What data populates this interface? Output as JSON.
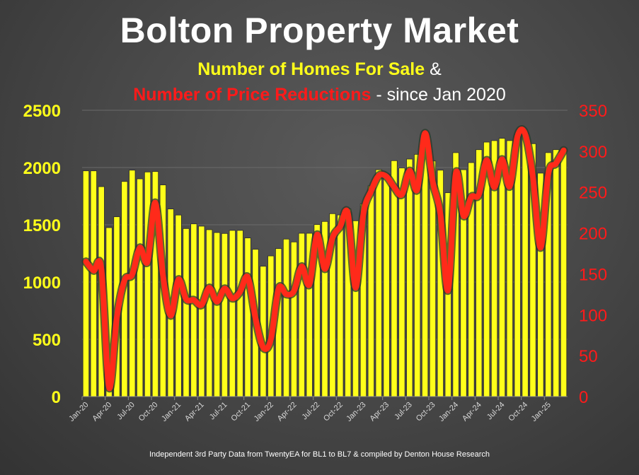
{
  "title": "Bolton Property Market",
  "subtitle": {
    "part1": "Number of Homes For Sale",
    "part1_suffix": " &",
    "part2": "Number of Price Reductions",
    "part2_suffix": " - since Jan 2020"
  },
  "footer": "Independent 3rd Party Data from TwentyEA for BL1 to BL7 & compiled by Denton House Research",
  "colors": {
    "bars": "#ffff1a",
    "line": "#ff2a1a",
    "left_axis": "#ffff1a",
    "right_axis": "#ff1a1a"
  },
  "chart_data": {
    "type": "bar+line",
    "title": "Bolton Property Market",
    "x_start": "Jan-20",
    "x_tick_labels": [
      "Jan-20",
      "Apr-20",
      "Jul-20",
      "Oct-20",
      "Jan-21",
      "Apr-21",
      "Jul-21",
      "Oct-21",
      "Jan-22",
      "Apr-22",
      "Jul-22",
      "Oct-22",
      "Jan-23",
      "Apr-23",
      "Jul-23",
      "Oct-23",
      "Jan-24",
      "Apr-24",
      "Jul-24",
      "Oct-24",
      "Jan-25"
    ],
    "y_left": {
      "label": "Number of Homes For Sale",
      "range": [
        0,
        2500
      ],
      "ticks": [
        "0",
        "500",
        "1000",
        "1500",
        "2000",
        "2500"
      ]
    },
    "y_right": {
      "label": "Number of Price Reductions",
      "range": [
        0,
        350
      ],
      "ticks": [
        "0",
        "50",
        "100",
        "150",
        "200",
        "250",
        "300",
        "350"
      ]
    },
    "grid": true,
    "series": [
      {
        "name": "Number of Homes For Sale",
        "type": "bar",
        "axis": "left",
        "values": [
          1971,
          1971,
          1833,
          1475,
          1570,
          1878,
          1977,
          1901,
          1961,
          1965,
          1848,
          1638,
          1585,
          1467,
          1508,
          1488,
          1457,
          1432,
          1424,
          1451,
          1451,
          1385,
          1286,
          1138,
          1228,
          1292,
          1375,
          1350,
          1426,
          1426,
          1502,
          1529,
          1597,
          1586,
          1638,
          1535,
          1683,
          1840,
          1981,
          1940,
          2060,
          1996,
          2074,
          2115,
          2180,
          2057,
          1977,
          1780,
          2130,
          1981,
          2043,
          2156,
          2222,
          2235,
          2255,
          2235,
          2286,
          2300,
          2208,
          1951,
          2130,
          2156,
          2160
        ]
      },
      {
        "name": "Number of Price Reductions",
        "type": "line",
        "axis": "right",
        "values": [
          165,
          154,
          156,
          11,
          96,
          142,
          149,
          182,
          165,
          237,
          148,
          99,
          143,
          119,
          118,
          112,
          133,
          116,
          132,
          120,
          128,
          146,
          96,
          60,
          70,
          132,
          125,
          129,
          159,
          137,
          198,
          156,
          194,
          208,
          224,
          133,
          223,
          251,
          270,
          269,
          256,
          247,
          276,
          253,
          322,
          263,
          223,
          130,
          273,
          221,
          244,
          247,
          289,
          256,
          290,
          257,
          318,
          321,
          269,
          182,
          272,
          285,
          301
        ]
      }
    ]
  }
}
